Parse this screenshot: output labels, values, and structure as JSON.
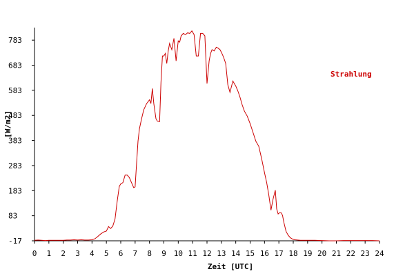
{
  "chart_data": {
    "type": "line",
    "title": "",
    "xlabel": "Zeit [UTC]",
    "ylabel": "[W/m2]",
    "xlim": [
      0,
      24
    ],
    "ylim": [
      -17,
      833
    ],
    "x_ticks": [
      0,
      1,
      2,
      3,
      4,
      5,
      6,
      7,
      8,
      9,
      10,
      11,
      12,
      13,
      14,
      15,
      16,
      17,
      18,
      19,
      20,
      21,
      22,
      23,
      24
    ],
    "y_ticks": [
      -17,
      83,
      183,
      283,
      383,
      483,
      583,
      683,
      783
    ],
    "grid": false,
    "legend_position": "top-right",
    "colors": {
      "series": "#cc0000",
      "axis": "#000000",
      "background": "#ffffff"
    },
    "series": [
      {
        "name": "Strahlung",
        "x": [
          0,
          0.25,
          0.5,
          0.75,
          1,
          1.25,
          1.5,
          1.75,
          2,
          2.25,
          2.5,
          2.75,
          3,
          3.25,
          3.5,
          3.75,
          4,
          4.2,
          4.4,
          4.6,
          4.8,
          5,
          5.15,
          5.3,
          5.45,
          5.6,
          5.75,
          5.9,
          6,
          6.15,
          6.3,
          6.45,
          6.6,
          6.75,
          6.9,
          7,
          7.1,
          7.2,
          7.3,
          7.45,
          7.6,
          7.8,
          8,
          8.1,
          8.2,
          8.3,
          8.45,
          8.55,
          8.7,
          8.8,
          8.9,
          9,
          9.1,
          9.2,
          9.3,
          9.4,
          9.55,
          9.7,
          9.85,
          10,
          10.1,
          10.2,
          10.35,
          10.5,
          10.65,
          10.8,
          10.95,
          11.1,
          11.25,
          11.4,
          11.55,
          11.7,
          11.85,
          12,
          12.15,
          12.25,
          12.35,
          12.5,
          12.65,
          12.8,
          12.9,
          13,
          13.15,
          13.3,
          13.45,
          13.6,
          13.8,
          13.9,
          14,
          14.15,
          14.3,
          14.45,
          14.6,
          14.8,
          15,
          15.2,
          15.4,
          15.6,
          15.8,
          16,
          16.15,
          16.3,
          16.45,
          16.6,
          16.75,
          16.85,
          16.95,
          17.05,
          17.15,
          17.25,
          17.35,
          17.5,
          17.65,
          17.8,
          17.95,
          18.1,
          18.3,
          18.5,
          18.75,
          19,
          19.5,
          20,
          20.5,
          21,
          21.5,
          22,
          22.5,
          23,
          23.5,
          24
        ],
        "values": [
          -15,
          -14,
          -15,
          -16,
          -15,
          -15,
          -15,
          -15,
          -15,
          -14,
          -14,
          -13,
          -14,
          -13,
          -14,
          -14,
          -13,
          -9,
          0,
          10,
          18,
          22,
          40,
          32,
          42,
          70,
          140,
          200,
          210,
          215,
          245,
          245,
          235,
          215,
          195,
          198,
          290,
          380,
          430,
          470,
          505,
          530,
          545,
          530,
          590,
          530,
          470,
          460,
          458,
          615,
          720,
          720,
          730,
          690,
          740,
          770,
          745,
          790,
          700,
          780,
          775,
          800,
          810,
          805,
          812,
          810,
          820,
          805,
          720,
          720,
          810,
          810,
          800,
          610,
          700,
          730,
          745,
          740,
          755,
          750,
          745,
          735,
          715,
          690,
          605,
          575,
          620,
          610,
          600,
          580,
          555,
          525,
          500,
          480,
          450,
          415,
          380,
          360,
          310,
          255,
          215,
          165,
          105,
          150,
          185,
          110,
          90,
          95,
          95,
          85,
          55,
          20,
          5,
          -5,
          -10,
          -13,
          -14,
          -15,
          -15,
          -15,
          -15,
          -16,
          -17,
          -17,
          -16,
          -16,
          -16,
          -16,
          -16,
          -17
        ]
      }
    ]
  }
}
